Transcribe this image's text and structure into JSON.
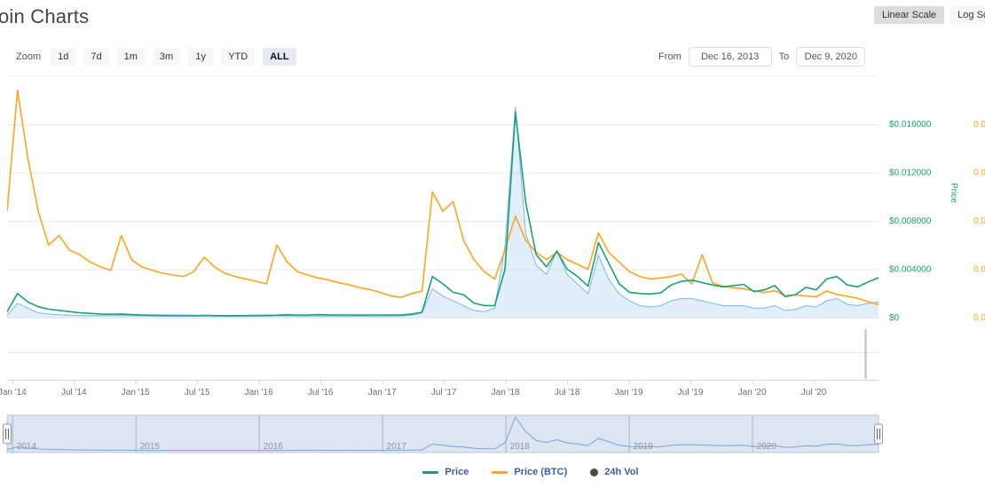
{
  "page": {
    "title": "oin Charts"
  },
  "scale_toggle": {
    "linear_label": "Linear Scale",
    "log_label": "Log Scale",
    "active": "Linear Scale"
  },
  "zoom_bar": {
    "label": "Zoom",
    "buttons": [
      "1d",
      "7d",
      "1m",
      "3m",
      "1y",
      "YTD",
      "ALL"
    ],
    "active": "ALL"
  },
  "date_range": {
    "from_label": "From",
    "from_value": "Dec 16, 2013",
    "to_label": "To",
    "to_value": "Dec 9, 2020"
  },
  "legend": [
    {
      "label": "Price",
      "marker": "line",
      "color": "#18a076"
    },
    {
      "label": "Price (BTC)",
      "marker": "line",
      "color": "#ffa41b"
    },
    {
      "label": "24h Vol",
      "marker": "circle",
      "color": "#4a4a4a"
    }
  ],
  "navigator": {
    "years": [
      "2014",
      "2015",
      "2016",
      "2017",
      "2018",
      "2019",
      "2020"
    ]
  },
  "chart_data": {
    "type": "line",
    "title": "",
    "x_range": "monthly points from Dec 2013 to Dec 2020 (85 points)",
    "x_tick_labels": [
      "Jan '14",
      "Jul '14",
      "Jan '15",
      "Jul '15",
      "Jan '16",
      "Jul '16",
      "Jan '17",
      "Jul '17",
      "Jan '18",
      "Jul '18",
      "Jan '19",
      "Jul '19",
      "Jan '20",
      "Jul '20"
    ],
    "grid": "horizontal",
    "legend_position": "bottom-center",
    "y_axis_price": {
      "title": "Price",
      "side": "right",
      "tick_labels": [
        "$0.016000",
        "$0.012000",
        "$0.008000",
        "$0.004000",
        "$0"
      ],
      "tick_values": [
        0.016,
        0.012,
        0.008,
        0.004,
        0
      ],
      "ylim": [
        0,
        0.02
      ],
      "color": "#18a076"
    },
    "y_axis_btc": {
      "side": "far-right",
      "tick_labels_visible": [
        "0.0",
        "0.0",
        "0.0",
        "0.0",
        "0.0"
      ],
      "ylim_gridline_units": [
        0,
        5
      ],
      "color": "#ffa41b"
    },
    "series": [
      {
        "name": "Price",
        "color": "#18a076",
        "axis": "price_usd",
        "values": [
          0.0005,
          0.002,
          0.0013,
          0.0009,
          0.0007,
          0.0006,
          0.0005,
          0.0004,
          0.00035,
          0.0003,
          0.00028,
          0.0003,
          0.00025,
          0.00022,
          0.0002,
          0.00019,
          0.00018,
          0.00018,
          0.00017,
          0.00018,
          0.00017,
          0.00016,
          0.00016,
          0.00017,
          0.00018,
          0.00019,
          0.0002,
          0.00024,
          0.00022,
          0.00022,
          0.00025,
          0.00023,
          0.00022,
          0.00022,
          0.00021,
          0.00022,
          0.00022,
          0.00021,
          0.00022,
          0.0003,
          0.00045,
          0.0034,
          0.0028,
          0.0021,
          0.0019,
          0.0012,
          0.001,
          0.001,
          0.004,
          0.017,
          0.0095,
          0.0052,
          0.0042,
          0.0055,
          0.004,
          0.0034,
          0.0026,
          0.0062,
          0.0045,
          0.0028,
          0.0021,
          0.002,
          0.00195,
          0.00205,
          0.0027,
          0.003,
          0.0031,
          0.0029,
          0.0027,
          0.00255,
          0.00265,
          0.00275,
          0.00215,
          0.0023,
          0.00265,
          0.00175,
          0.0019,
          0.0025,
          0.0023,
          0.0032,
          0.0034,
          0.0027,
          0.00255,
          0.00295,
          0.0033
        ]
      },
      {
        "name": "Price (BTC)",
        "color": "#ffa41b",
        "axis": "btc_gridline_units",
        "values": [
          2.2,
          4.7,
          3.3,
          2.2,
          1.5,
          1.7,
          1.4,
          1.3,
          1.15,
          1.05,
          0.98,
          1.7,
          1.2,
          1.05,
          0.98,
          0.92,
          0.88,
          0.85,
          0.95,
          1.25,
          1.05,
          0.92,
          0.85,
          0.8,
          0.75,
          0.7,
          1.5,
          1.15,
          0.95,
          0.88,
          0.82,
          0.78,
          0.72,
          0.68,
          0.62,
          0.58,
          0.52,
          0.45,
          0.42,
          0.5,
          0.55,
          2.6,
          2.2,
          2.4,
          1.6,
          1.2,
          0.95,
          0.8,
          1.4,
          2.1,
          1.6,
          1.35,
          1.2,
          1.35,
          1.2,
          1.1,
          1.0,
          1.75,
          1.35,
          1.15,
          0.95,
          0.85,
          0.8,
          0.82,
          0.85,
          0.9,
          0.7,
          1.3,
          0.72,
          0.65,
          0.62,
          0.6,
          0.55,
          0.52,
          0.56,
          0.45,
          0.47,
          0.45,
          0.43,
          0.55,
          0.48,
          0.44,
          0.4,
          0.33,
          0.27
        ]
      },
      {
        "name": "24h Vol",
        "color": "#7cb5ec",
        "axis": "hidden-normalized",
        "values": [
          0.01,
          0.06,
          0.04,
          0.02,
          0.015,
          0.012,
          0.01,
          0.008,
          0.008,
          0.008,
          0.008,
          0.009,
          0.008,
          0.007,
          0.007,
          0.006,
          0.006,
          0.006,
          0.006,
          0.007,
          0.006,
          0.006,
          0.006,
          0.006,
          0.006,
          0.006,
          0.008,
          0.007,
          0.006,
          0.006,
          0.007,
          0.006,
          0.006,
          0.006,
          0.006,
          0.006,
          0.006,
          0.006,
          0.007,
          0.01,
          0.02,
          0.12,
          0.09,
          0.07,
          0.05,
          0.03,
          0.025,
          0.04,
          0.3,
          0.88,
          0.35,
          0.22,
          0.18,
          0.28,
          0.18,
          0.14,
          0.1,
          0.26,
          0.16,
          0.1,
          0.07,
          0.05,
          0.045,
          0.05,
          0.07,
          0.08,
          0.08,
          0.07,
          0.06,
          0.05,
          0.05,
          0.05,
          0.04,
          0.04,
          0.05,
          0.03,
          0.035,
          0.05,
          0.045,
          0.07,
          0.08,
          0.055,
          0.05,
          0.06,
          0.065
        ]
      }
    ],
    "navigator_series": {
      "color": "#76a6dd",
      "derived_from": "Price (normalized)"
    }
  }
}
